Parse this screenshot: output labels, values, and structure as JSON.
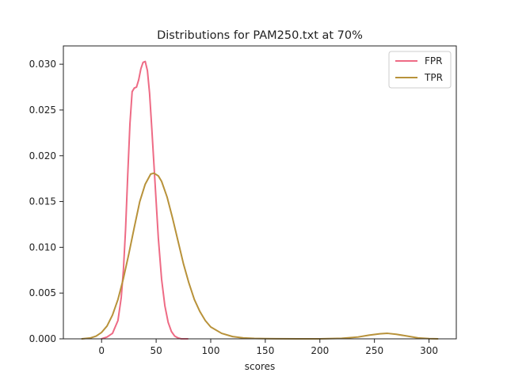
{
  "chart_data": {
    "type": "line",
    "title": "Distributions for PAM250.txt at 70%",
    "xlabel": "scores",
    "ylabel": "",
    "xlim": [
      -35,
      325
    ],
    "ylim": [
      0,
      0.032
    ],
    "xticks": [
      0,
      50,
      100,
      150,
      200,
      250,
      300
    ],
    "xtick_labels": [
      "0",
      "50",
      "100",
      "150",
      "200",
      "250",
      "300"
    ],
    "yticks": [
      0,
      0.005,
      0.01,
      0.015,
      0.02,
      0.025,
      0.03
    ],
    "ytick_labels": [
      "0.000",
      "0.005",
      "0.010",
      "0.015",
      "0.020",
      "0.025",
      "0.030"
    ],
    "grid": false,
    "legend_position": "top-right",
    "series": [
      {
        "name": "FPR",
        "color": "#ee6b85",
        "x": [
          0,
          5,
          10,
          15,
          18,
          20,
          22,
          24,
          26,
          28,
          30,
          32,
          34,
          36,
          38,
          40,
          42,
          44,
          46,
          48,
          50,
          52,
          55,
          58,
          61,
          64,
          67,
          70,
          73,
          76,
          79
        ],
        "y": [
          0.0,
          0.0002,
          0.0006,
          0.002,
          0.0045,
          0.0075,
          0.012,
          0.018,
          0.0235,
          0.027,
          0.0274,
          0.0275,
          0.0283,
          0.0295,
          0.0302,
          0.0303,
          0.0293,
          0.0268,
          0.023,
          0.019,
          0.015,
          0.011,
          0.0065,
          0.0036,
          0.0018,
          0.0008,
          0.0003,
          0.0001,
          0.0,
          0.0,
          0.0
        ]
      },
      {
        "name": "TPR",
        "color": "#b8923a",
        "x": [
          -18,
          -10,
          -5,
          0,
          5,
          10,
          15,
          20,
          25,
          30,
          35,
          40,
          45,
          48,
          52,
          55,
          60,
          65,
          70,
          75,
          80,
          85,
          90,
          95,
          100,
          110,
          120,
          130,
          140,
          150,
          160,
          180,
          200,
          220,
          235,
          245,
          255,
          262,
          270,
          280,
          290,
          300,
          308
        ],
        "y": [
          0.0,
          0.0001,
          0.0003,
          0.0007,
          0.0014,
          0.0026,
          0.0043,
          0.0066,
          0.0093,
          0.0122,
          0.015,
          0.0169,
          0.018,
          0.0181,
          0.0178,
          0.0172,
          0.0155,
          0.0132,
          0.0107,
          0.0082,
          0.0061,
          0.0043,
          0.003,
          0.002,
          0.0013,
          0.0006,
          0.00025,
          0.0001,
          4e-05,
          2e-05,
          1e-05,
          0.0,
          0.0,
          5e-05,
          0.0002,
          0.0004,
          0.00055,
          0.0006,
          0.0005,
          0.0003,
          0.0001,
          2e-05,
          0.0
        ]
      }
    ]
  }
}
